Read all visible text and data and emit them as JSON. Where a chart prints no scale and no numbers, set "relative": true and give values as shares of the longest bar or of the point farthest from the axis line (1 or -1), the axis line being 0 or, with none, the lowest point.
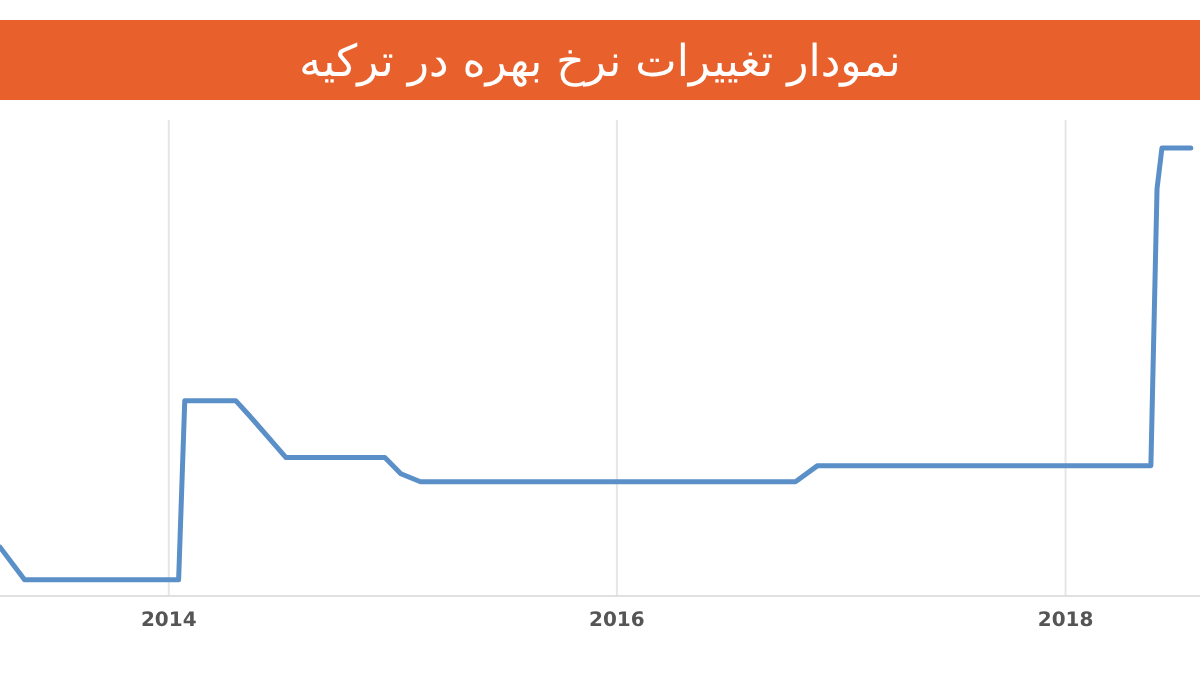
{
  "chart_data": {
    "type": "line",
    "title": "نمودار تغییرات نرخ بهره در ترکیه",
    "relative": true,
    "grid": "x",
    "x": [
      "2013-04-01",
      "2013-05-11",
      "2014-01-17",
      "2014-01-27",
      "2014-04-20",
      "2014-05-14",
      "2014-07-11",
      "2014-12-19",
      "2015-01-14",
      "2015-02-15",
      "2016-10-18",
      "2016-11-23",
      "2018-05-20",
      "2018-05-30",
      "2018-06-07",
      "2018-07-24"
    ],
    "series": [
      {
        "color": "#5b8fc7",
        "values": [
          0.109,
          0.036,
          0.036,
          0.436,
          0.436,
          0.4,
          0.309,
          0.309,
          0.273,
          0.255,
          0.255,
          0.291,
          0.291,
          0.909,
          1,
          1
        ]
      }
    ],
    "xlim": [
      "2013-04-01",
      "2018-08-08"
    ],
    "xticks": [
      "2014",
      "2016",
      "2018"
    ],
    "marker": "none",
    "line_style": "solid"
  }
}
